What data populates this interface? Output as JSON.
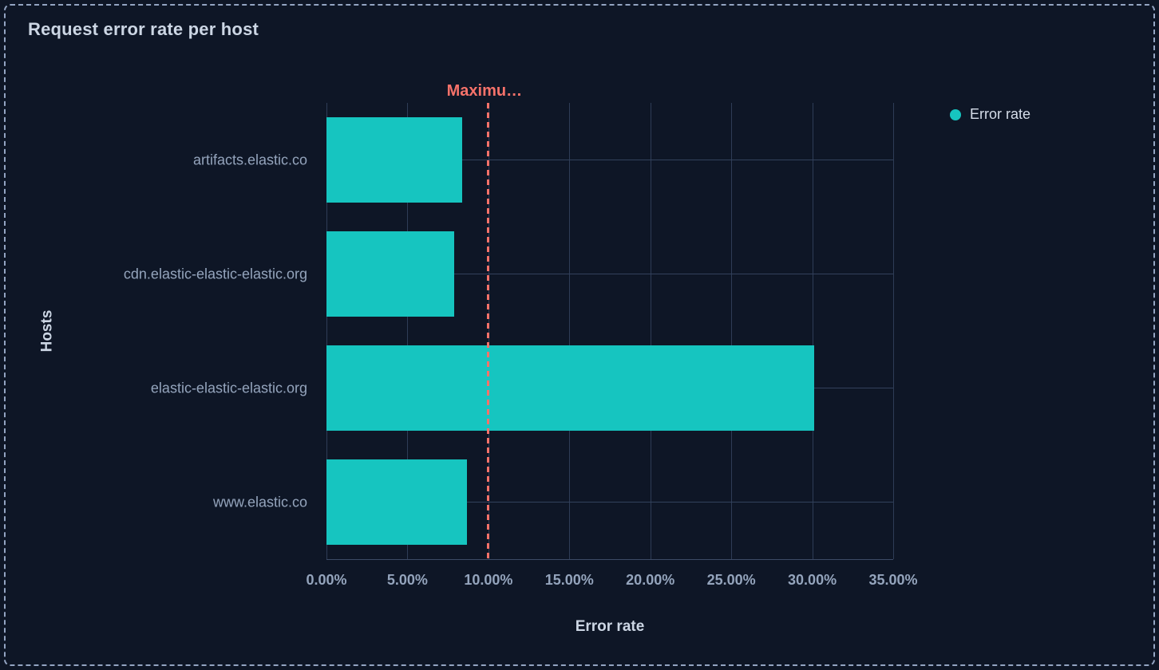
{
  "panel": {
    "title": "Request error rate per host"
  },
  "legend": {
    "items": [
      {
        "label": "Error rate",
        "color": "#16C5C0"
      }
    ]
  },
  "chart_data": {
    "type": "bar",
    "orientation": "horizontal",
    "title": "Request error rate per host",
    "categories": [
      "artifacts.elastic.co",
      "cdn.elastic-elastic-elastic.org",
      "elastic-elastic-elastic.org",
      "www.elastic.co"
    ],
    "series": [
      {
        "name": "Error rate",
        "color": "#16C5C0",
        "values": [
          8.4,
          7.9,
          30.1,
          8.7
        ]
      }
    ],
    "xlabel": "Error rate",
    "ylabel": "Hosts",
    "xlim": [
      0,
      35
    ],
    "x_tick_values": [
      0,
      5,
      10,
      15,
      20,
      25,
      30,
      35
    ],
    "x_tick_labels": [
      "0.00%",
      "5.00%",
      "10.00%",
      "15.00%",
      "20.00%",
      "25.00%",
      "30.00%",
      "35.00%"
    ],
    "grid": true,
    "legend_position": "top-right",
    "threshold": {
      "label": "Maximu…",
      "value": 10,
      "color": "#F6726A"
    }
  },
  "colors": {
    "background": "#0e1626",
    "panel_border": "#93a4c2",
    "bar": "#16C5C0",
    "threshold": "#F6726A",
    "grid": "#33415c",
    "tick_text": "#94a4bc",
    "title_text": "#ccd6e4"
  }
}
